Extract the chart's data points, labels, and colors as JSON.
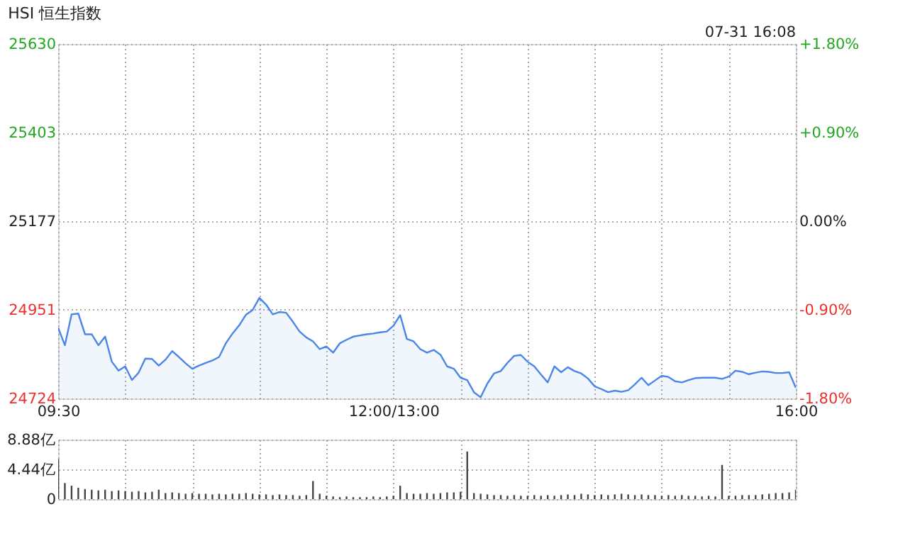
{
  "chart_data": [
    {
      "type": "area",
      "title": "HSI 恒生指数",
      "annotations": [
        "07-31 16:08"
      ],
      "categories": [
        "09:30",
        null,
        null,
        null,
        null,
        null,
        null,
        null,
        null,
        null,
        null,
        null,
        null,
        null,
        null,
        null,
        null,
        null,
        null,
        null,
        null,
        null,
        null,
        null,
        null,
        null,
        null,
        null,
        null,
        null,
        null,
        null,
        null,
        null,
        null,
        null,
        null,
        null,
        null,
        null,
        null,
        null,
        null,
        null,
        null,
        null,
        null,
        null,
        null,
        null,
        "12:00/13:00",
        null,
        null,
        null,
        null,
        null,
        null,
        null,
        null,
        null,
        null,
        null,
        null,
        null,
        null,
        null,
        null,
        null,
        null,
        null,
        null,
        null,
        null,
        null,
        null,
        null,
        null,
        null,
        null,
        null,
        null,
        null,
        null,
        null,
        null,
        null,
        null,
        null,
        null,
        null,
        null,
        null,
        null,
        null,
        null,
        null,
        null,
        null,
        null,
        null,
        null,
        null,
        null,
        null,
        null,
        null,
        null,
        null,
        null,
        null,
        "16:00"
      ],
      "ylim": [
        24724,
        25630
      ],
      "yticks": [
        24724,
        24951,
        25177,
        25403,
        25630
      ],
      "y2lim": [
        -1.8,
        1.8
      ],
      "y2ticks": [
        {
          "value": -1.8,
          "label": "-1.80%"
        },
        {
          "value": -0.9,
          "label": "-0.90%"
        },
        {
          "value": 0,
          "label": "0.00%"
        },
        {
          "value": 0.9,
          "label": "+0.90%"
        },
        {
          "value": 1.8,
          "label": "+1.80%"
        }
      ],
      "grid": true,
      "series": [
        {
          "color": "#4a86e8",
          "values": [
            24905,
            24860,
            24939,
            24941,
            24888,
            24888,
            24860,
            24882,
            24818,
            24795,
            24806,
            24771,
            24790,
            24826,
            24825,
            24808,
            24823,
            24845,
            24830,
            24814,
            24800,
            24808,
            24815,
            24821,
            24830,
            24865,
            24890,
            24911,
            24938,
            24950,
            24981,
            24964,
            24939,
            24945,
            24943,
            24920,
            24895,
            24880,
            24870,
            24850,
            24857,
            24841,
            24865,
            24874,
            24882,
            24885,
            24888,
            24890,
            24893,
            24895,
            24910,
            24937,
            24876,
            24870,
            24850,
            24841,
            24848,
            24836,
            24806,
            24800,
            24777,
            24771,
            24740,
            24727,
            24762,
            24788,
            24794,
            24815,
            24833,
            24835,
            24818,
            24806,
            24785,
            24765,
            24806,
            24791,
            24804,
            24794,
            24788,
            24775,
            24755,
            24748,
            24740,
            24744,
            24741,
            24745,
            24760,
            24777,
            24758,
            24770,
            24782,
            24779,
            24768,
            24765,
            24771,
            24776,
            24777,
            24777,
            24777,
            24774,
            24780,
            24795,
            24792,
            24786,
            24790,
            24793,
            24792,
            24789,
            24789,
            24791,
            24751
          ]
        }
      ]
    },
    {
      "type": "bar",
      "categories": [
        null,
        null,
        null,
        null,
        null,
        null,
        null,
        null,
        null,
        null,
        null,
        null,
        null,
        null,
        null,
        null,
        null,
        null,
        null,
        null,
        null,
        null,
        null,
        null,
        null,
        null,
        null,
        null,
        null,
        null,
        null,
        null,
        null,
        null,
        null,
        null,
        null,
        null,
        null,
        null,
        null,
        null,
        null,
        null,
        null,
        null,
        null,
        null,
        null,
        null,
        null,
        null,
        null,
        null,
        null,
        null,
        null,
        null,
        null,
        null,
        null,
        null,
        null,
        null,
        null,
        null,
        null,
        null,
        null,
        null,
        null,
        null,
        null,
        null,
        null,
        null,
        null,
        null,
        null,
        null,
        null,
        null,
        null,
        null,
        null,
        null,
        null,
        null,
        null,
        null,
        null,
        null,
        null,
        null,
        null,
        null,
        null,
        null,
        null,
        null,
        null,
        null,
        null,
        null,
        null,
        null,
        null,
        null,
        null,
        null,
        null
      ],
      "ylim": [
        0,
        8.88
      ],
      "yticks": [
        0,
        {
          "value": 4.44,
          "label": "4.44亿"
        },
        {
          "value": 8.88,
          "label": "8.88亿"
        }
      ],
      "tick_labels": "y",
      "grid": true,
      "series": [
        {
          "color": "#444444",
          "values": [
            6.0,
            2.4,
            2.0,
            1.7,
            1.5,
            1.4,
            1.3,
            1.4,
            1.2,
            1.3,
            1.2,
            1.1,
            1.2,
            1.0,
            1.1,
            1.4,
            0.9,
            1.0,
            0.9,
            0.8,
            0.9,
            0.8,
            0.8,
            0.7,
            0.8,
            0.7,
            0.8,
            0.8,
            0.9,
            0.8,
            0.7,
            0.7,
            0.6,
            0.7,
            0.6,
            0.6,
            0.5,
            0.6,
            2.7,
            0.8,
            0.5,
            0.4,
            0.3,
            0.4,
            0.3,
            0.3,
            0.3,
            0.4,
            0.3,
            0.4,
            0.5,
            2.0,
            0.9,
            0.8,
            0.8,
            0.9,
            0.8,
            0.9,
            1.0,
            1.0,
            1.1,
            7.1,
            0.9,
            0.8,
            0.7,
            0.6,
            0.6,
            0.5,
            0.6,
            0.5,
            0.5,
            0.6,
            0.5,
            0.6,
            0.5,
            0.6,
            0.7,
            0.6,
            0.8,
            0.7,
            0.6,
            0.7,
            0.6,
            0.7,
            0.8,
            0.7,
            0.6,
            0.7,
            0.6,
            0.6,
            0.5,
            0.6,
            0.5,
            0.6,
            0.5,
            0.5,
            0.4,
            0.5,
            0.4,
            5.1,
            0.5,
            0.5,
            0.6,
            0.6,
            0.6,
            0.7,
            0.8,
            0.9,
            0.9,
            1.0,
            1.4
          ]
        }
      ]
    }
  ]
}
